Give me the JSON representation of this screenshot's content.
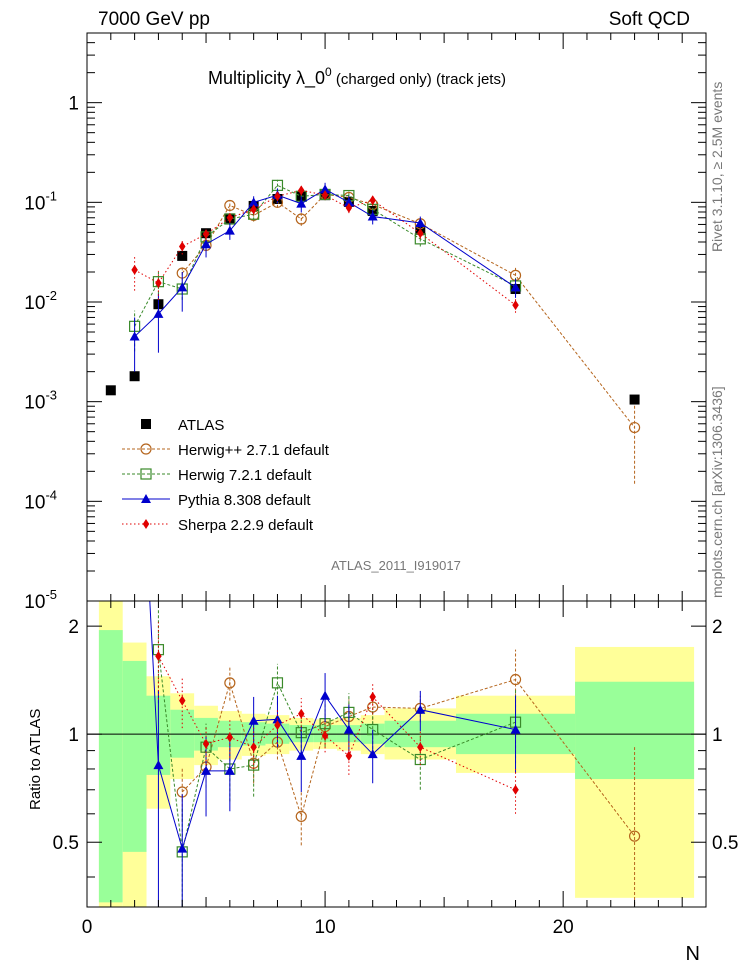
{
  "header": {
    "left": "7000 GeV pp",
    "right": "Soft QCD"
  },
  "side_labels": {
    "top": "Rivet 3.1.10, ≥ 2.5M events",
    "bottom": "mcplots.cern.ch [arXiv:1306.3436]"
  },
  "title": {
    "main": "Multiplicity  λ_0",
    "sup": "0",
    "suffix": " (charged only) (track jets)"
  },
  "analysis_id": "ATLAS_2011_I919017",
  "chart_data": [
    {
      "type": "scatter",
      "panel": "main",
      "yscale": "log",
      "xlim": [
        0,
        26
      ],
      "ylim": [
        1e-05,
        5
      ],
      "ytick_labels": [
        "1",
        "10",
        "10",
        "10",
        "10",
        "10"
      ],
      "ytick_exponents": [
        "",
        "-1",
        "-2",
        "-3",
        "-4",
        "-5"
      ],
      "legend_placement": "lower-left",
      "series": [
        {
          "name": "ATLAS",
          "color": "#000000",
          "marker": "square",
          "x": [
            1,
            2,
            3,
            4,
            5,
            6,
            7,
            8,
            9,
            10,
            11,
            12,
            14,
            18,
            23
          ],
          "y": [
            0.0013,
            0.0018,
            0.0095,
            0.029,
            0.049,
            0.069,
            0.092,
            0.108,
            0.115,
            0.118,
            0.101,
            0.082,
            0.053,
            0.0135,
            0.00105
          ]
        },
        {
          "name": "Herwig++ 2.7.1 default",
          "color": "#b5651d",
          "marker": "circle-open",
          "x": [
            4,
            5,
            6,
            7,
            8,
            9,
            10,
            11,
            12,
            14,
            18,
            23
          ],
          "y": [
            0.0195,
            0.037,
            0.093,
            0.074,
            0.1,
            0.068,
            0.12,
            0.112,
            0.095,
            0.061,
            0.0185,
            0.00055
          ],
          "yerr": [
            0.003,
            0.005,
            0.012,
            0.01,
            0.012,
            0.01,
            0.015,
            0.015,
            0.013,
            0.008,
            0.004,
            0.0004
          ]
        },
        {
          "name": "Herwig 7.2.1 default",
          "color": "#3a8a2a",
          "marker": "square-open",
          "x": [
            2,
            3,
            4,
            5,
            6,
            7,
            8,
            9,
            10,
            11,
            12,
            14,
            18
          ],
          "y": [
            0.0057,
            0.016,
            0.0135,
            0.045,
            0.068,
            0.076,
            0.148,
            0.115,
            0.12,
            0.117,
            0.085,
            0.043,
            0.0145
          ],
          "yerr": [
            0.0025,
            0.004,
            0.003,
            0.007,
            0.009,
            0.01,
            0.02,
            0.015,
            0.015,
            0.015,
            0.012,
            0.007,
            0.003
          ]
        },
        {
          "name": "Pythia 8.308 default",
          "color": "#0000cc",
          "marker": "triangle",
          "x": [
            2,
            3,
            4,
            5,
            6,
            7,
            8,
            9,
            10,
            11,
            12,
            14,
            18
          ],
          "y": [
            0.0045,
            0.0076,
            0.014,
            0.038,
            0.052,
            0.1,
            0.118,
            0.097,
            0.135,
            0.1,
            0.072,
            0.062,
            0.014
          ],
          "yerr": [
            0.0025,
            0.0045,
            0.006,
            0.01,
            0.01,
            0.015,
            0.02,
            0.018,
            0.022,
            0.016,
            0.012,
            0.01,
            0.003
          ]
        },
        {
          "name": "Sherpa 2.2.9 default",
          "color": "#e00000",
          "marker": "diamond",
          "x": [
            2,
            3,
            4,
            5,
            6,
            7,
            8,
            9,
            10,
            11,
            12,
            14,
            18
          ],
          "y": [
            0.021,
            0.0155,
            0.036,
            0.048,
            0.07,
            0.085,
            0.115,
            0.132,
            0.118,
            0.088,
            0.105,
            0.049,
            0.0093
          ],
          "yerr": [
            0.008,
            0.005,
            0.006,
            0.006,
            0.008,
            0.01,
            0.012,
            0.015,
            0.012,
            0.01,
            0.012,
            0.006,
            0.0015
          ]
        }
      ]
    },
    {
      "type": "scatter",
      "panel": "ratio",
      "xlim": [
        0,
        26
      ],
      "ylim": [
        0.33,
        2.35
      ],
      "xticks": [
        0,
        10,
        20
      ],
      "yticks_labeled": [
        0.5,
        1,
        2
      ],
      "ytick_labels": [
        "0.5",
        "1",
        "2"
      ],
      "xlabel": "N",
      "ylabel": "Ratio to ATLAS",
      "bands": {
        "green_color": "#99ff99",
        "yellow_color": "#ffff99",
        "bins": [
          {
            "x0": 0.5,
            "x1": 1.5,
            "g": [
              0.34,
              1.95
            ],
            "yl": [
              0.33,
              2.35
            ]
          },
          {
            "x0": 1.5,
            "x1": 2.5,
            "g": [
              0.47,
              1.6
            ],
            "yl": [
              0.33,
              1.8
            ]
          },
          {
            "x0": 2.5,
            "x1": 3.5,
            "g": [
              0.77,
              1.28
            ],
            "yl": [
              0.62,
              1.45
            ]
          },
          {
            "x0": 3.5,
            "x1": 4.5,
            "g": [
              0.86,
              1.17
            ],
            "yl": [
              0.75,
              1.3
            ]
          },
          {
            "x0": 4.5,
            "x1": 5.5,
            "g": [
              0.9,
              1.11
            ],
            "yl": [
              0.82,
              1.2
            ]
          },
          {
            "x0": 5.5,
            "x1": 6.5,
            "g": [
              0.92,
              1.09
            ],
            "yl": [
              0.85,
              1.16
            ]
          },
          {
            "x0": 6.5,
            "x1": 7.5,
            "g": [
              0.93,
              1.08
            ],
            "yl": [
              0.87,
              1.14
            ]
          },
          {
            "x0": 7.5,
            "x1": 8.5,
            "g": [
              0.94,
              1.07
            ],
            "yl": [
              0.88,
              1.13
            ]
          },
          {
            "x0": 8.5,
            "x1": 9.5,
            "g": [
              0.95,
              1.06
            ],
            "yl": [
              0.9,
              1.11
            ]
          },
          {
            "x0": 9.5,
            "x1": 10.5,
            "g": [
              0.95,
              1.06
            ],
            "yl": [
              0.91,
              1.1
            ]
          },
          {
            "x0": 10.5,
            "x1": 11.5,
            "g": [
              0.95,
              1.06
            ],
            "yl": [
              0.9,
              1.11
            ]
          },
          {
            "x0": 11.5,
            "x1": 12.5,
            "g": [
              0.94,
              1.07
            ],
            "yl": [
              0.88,
              1.13
            ]
          },
          {
            "x0": 12.5,
            "x1": 15.5,
            "g": [
              0.92,
              1.09
            ],
            "yl": [
              0.85,
              1.18
            ]
          },
          {
            "x0": 15.5,
            "x1": 20.5,
            "g": [
              0.88,
              1.14
            ],
            "yl": [
              0.78,
              1.28
            ]
          },
          {
            "x0": 20.5,
            "x1": 25.5,
            "g": [
              0.75,
              1.4
            ],
            "yl": [
              0.35,
              1.75
            ]
          }
        ]
      },
      "reference_line": 1,
      "series": [
        {
          "name": "Herwig++ 2.7.1 default",
          "color": "#b5651d",
          "marker": "circle-open",
          "x": [
            4,
            5,
            6,
            7,
            8,
            9,
            10,
            11,
            12,
            14,
            18,
            23
          ],
          "y": [
            0.69,
            0.81,
            1.39,
            0.83,
            0.95,
            0.59,
            1.05,
            1.12,
            1.19,
            1.18,
            1.42,
            0.52
          ],
          "yerr": [
            0.12,
            0.1,
            0.15,
            0.1,
            0.1,
            0.1,
            0.12,
            0.13,
            0.13,
            0.1,
            0.3,
            0.4
          ]
        },
        {
          "name": "Herwig 7.2.1 default",
          "color": "#3a8a2a",
          "marker": "square-open",
          "x": [
            3,
            4,
            5,
            6,
            7,
            8,
            9,
            10,
            11,
            12,
            14,
            18
          ],
          "y": [
            1.72,
            0.47,
            0.92,
            0.8,
            0.82,
            1.39,
            1.01,
            1.07,
            1.15,
            1.03,
            0.85,
            1.08
          ],
          "yerr": [
            0.5,
            0.15,
            0.15,
            0.15,
            0.15,
            0.18,
            0.15,
            0.15,
            0.15,
            0.15,
            0.15,
            0.25
          ]
        },
        {
          "name": "Pythia 8.308 default",
          "color": "#0000cc",
          "marker": "triangle",
          "x": [
            3,
            4,
            5,
            6,
            7,
            8,
            9,
            10,
            11,
            12,
            14,
            18
          ],
          "y": [
            0.82,
            0.48,
            0.79,
            0.79,
            1.09,
            1.1,
            0.87,
            1.28,
            1.03,
            0.88,
            1.17,
            1.03
          ],
          "yerr": [
            0.5,
            0.2,
            0.2,
            0.18,
            0.18,
            0.18,
            0.18,
            0.2,
            0.18,
            0.15,
            0.15,
            0.25
          ]
        },
        {
          "name": "Sherpa 2.2.9 default",
          "color": "#e00000",
          "marker": "diamond",
          "x": [
            3,
            4,
            5,
            6,
            7,
            8,
            9,
            10,
            11,
            12,
            14,
            18
          ],
          "y": [
            1.65,
            1.24,
            0.94,
            0.98,
            0.92,
            1.06,
            1.14,
            0.99,
            0.87,
            1.27,
            0.92,
            0.7
          ],
          "yerr": [
            0.4,
            0.2,
            0.12,
            0.12,
            0.12,
            0.12,
            0.12,
            0.1,
            0.1,
            0.13,
            0.1,
            0.1
          ]
        }
      ]
    }
  ]
}
